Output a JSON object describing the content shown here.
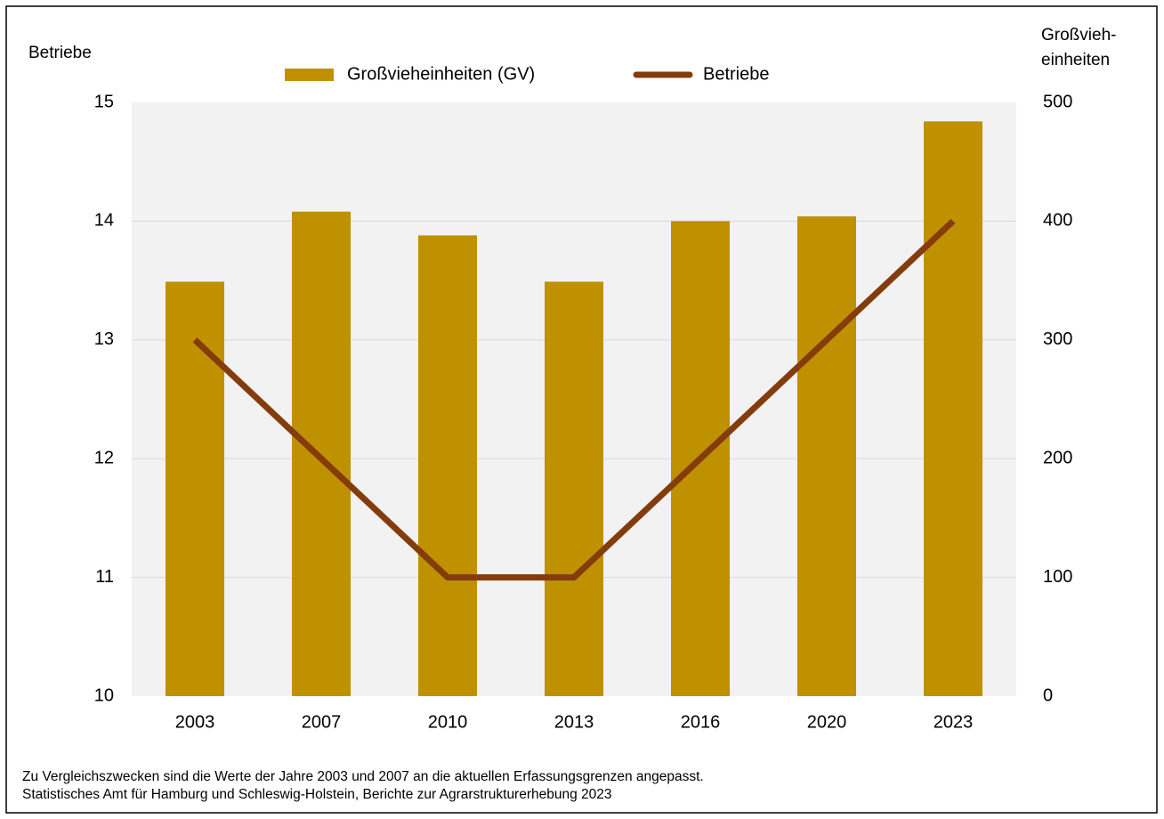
{
  "chart_data": {
    "type": "bar_line",
    "ylabel": "Betriebe",
    "y2label": [
      "Großvieh-",
      "einheiten"
    ],
    "categories": [
      "2003",
      "2007",
      "2010",
      "2013",
      "2016",
      "2020",
      "2023"
    ],
    "series": [
      {
        "name": "Großvieheinheiten (GV)",
        "type": "bar",
        "axis": "y2",
        "color": "#bf9000",
        "values": [
          349,
          408,
          388,
          349,
          400,
          404,
          484
        ]
      },
      {
        "name": "Betriebe",
        "type": "line",
        "axis": "y",
        "color": "#843c0c",
        "values": [
          13,
          12,
          11,
          11,
          12,
          13,
          14
        ]
      }
    ],
    "ylim": [
      10,
      15
    ],
    "yticks": [
      10,
      11,
      12,
      13,
      14,
      15
    ],
    "y2lim": [
      0,
      500
    ],
    "y2ticks": [
      0,
      100,
      200,
      300,
      400,
      500
    ],
    "grid": true,
    "legend": "top",
    "notes": [
      "Zu Vergleichszwecken sind die Werte der Jahre 2003 und 2007 an die aktuellen Erfassungsgrenzen angepasst.",
      "Statistisches Amt für Hamburg und Schleswig-Holstein,  Berichte zur Agrarstrukturerhebung 2023"
    ]
  }
}
